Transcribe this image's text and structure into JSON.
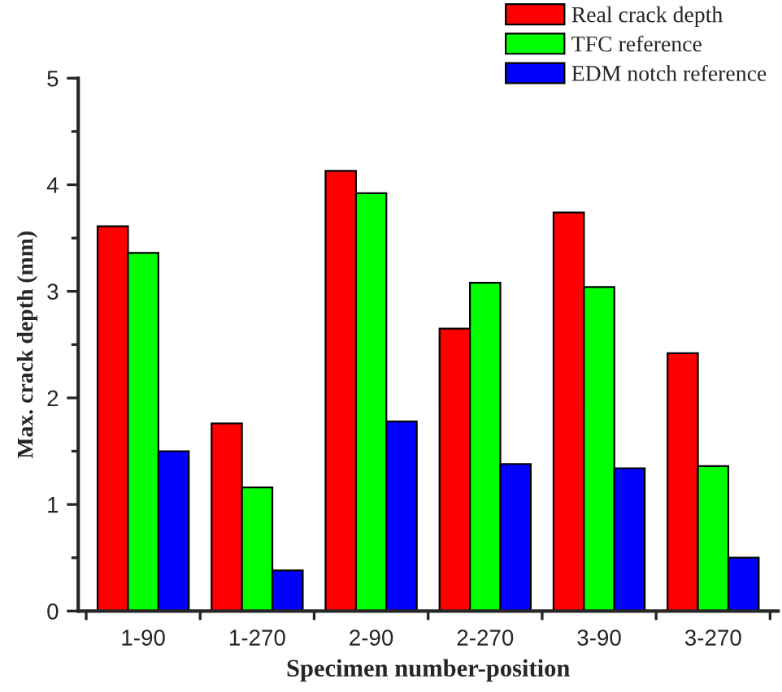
{
  "chart_data": {
    "type": "bar",
    "xlabel": "Specimen number-position",
    "ylabel": "Max. crack depth (mm)",
    "categories": [
      "1-90",
      "1-270",
      "2-90",
      "2-270",
      "3-90",
      "3-270"
    ],
    "series": [
      {
        "name": "Real crack depth",
        "color": "#ff0000",
        "values": [
          3.61,
          1.76,
          4.13,
          2.65,
          3.74,
          2.42
        ]
      },
      {
        "name": "TFC reference",
        "color": "#00ff00",
        "values": [
          3.36,
          1.16,
          3.92,
          3.08,
          3.04,
          1.36
        ]
      },
      {
        "name": "EDM notch reference",
        "color": "#0000ff",
        "values": [
          1.5,
          0.38,
          1.78,
          1.38,
          1.34,
          0.5
        ]
      }
    ],
    "ylim": [
      0,
      5
    ],
    "yticks": [
      0,
      1,
      2,
      3,
      4,
      5
    ],
    "legend": "top right",
    "grid": false
  }
}
